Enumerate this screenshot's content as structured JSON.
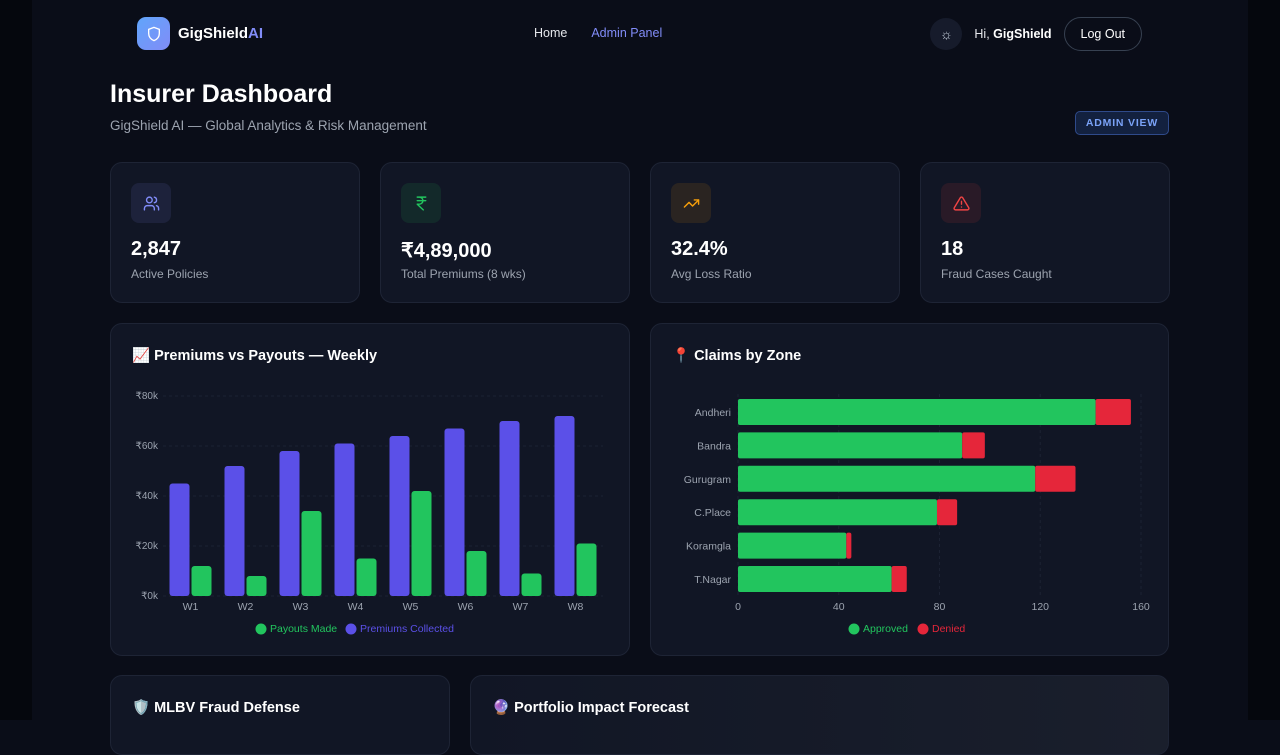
{
  "nav": {
    "brand_main": "GigShield",
    "brand_accent": "AI",
    "links": [
      "Home",
      "Admin Panel"
    ],
    "greeting": "Hi,",
    "user": "GigShield",
    "logout": "Log Out"
  },
  "header": {
    "title": "Insurer Dashboard",
    "subtitle": "GigShield AI — Global Analytics & Risk Management",
    "badge": "ADMIN VIEW"
  },
  "stats": [
    {
      "icon": "users-icon",
      "value": "2,847",
      "label": "Active Policies",
      "color": "#818cf8"
    },
    {
      "icon": "rupee-icon",
      "value": "₹4,89,000",
      "label": "Total Premiums (8 wks)",
      "color": "#22c55e"
    },
    {
      "icon": "trending-up-icon",
      "value": "32.4%",
      "label": "Avg Loss Ratio",
      "color": "#f59e0b"
    },
    {
      "icon": "alert-triangle-icon",
      "value": "18",
      "label": "Fraud Cases Caught",
      "color": "#ef4444"
    }
  ],
  "panels": {
    "fraud": "🛡️ MLBV Fraud Defense",
    "forecast": "🔮 Portfolio Impact Forecast"
  },
  "chart_data": [
    {
      "type": "bar",
      "title": "📈 Premiums vs Payouts — Weekly",
      "categories": [
        "W1",
        "W2",
        "W3",
        "W4",
        "W5",
        "W6",
        "W7",
        "W8"
      ],
      "yticks": [
        "₹0k",
        "₹20k",
        "₹40k",
        "₹60k",
        "₹80k"
      ],
      "ylim": [
        0,
        80000
      ],
      "series": [
        {
          "name": "Premiums Collected",
          "color": "#5b50e8",
          "values": [
            45000,
            52000,
            58000,
            61000,
            64000,
            67000,
            70000,
            72000
          ]
        },
        {
          "name": "Payouts Made",
          "color": "#22c55e",
          "values": [
            12000,
            8000,
            34000,
            15000,
            42000,
            18000,
            9000,
            21000
          ]
        }
      ],
      "legend": [
        "Payouts Made",
        "Premiums Collected"
      ],
      "legend_placement": "bottom"
    },
    {
      "type": "bar",
      "orientation": "horizontal",
      "stacked": true,
      "title": "📍 Claims by Zone",
      "categories": [
        "Andheri",
        "Bandra",
        "Gurugram",
        "C.Place",
        "Koramgla",
        "T.Nagar"
      ],
      "xticks": [
        "0",
        "40",
        "80",
        "120",
        "160"
      ],
      "xlim": [
        0,
        160
      ],
      "series": [
        {
          "name": "Approved",
          "color": "#22c55e",
          "values": [
            142,
            89,
            118,
            79,
            43,
            61
          ]
        },
        {
          "name": "Denied",
          "color": "#e5263a",
          "values": [
            14,
            9,
            16,
            8,
            2,
            6
          ]
        }
      ],
      "legend_placement": "bottom"
    }
  ]
}
